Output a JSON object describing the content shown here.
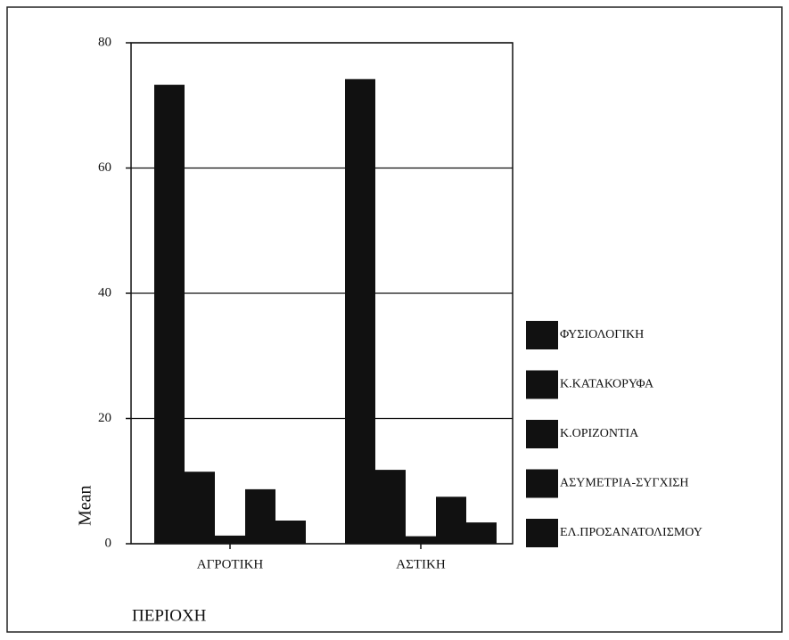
{
  "chart_data": {
    "type": "bar",
    "categories": [
      "ΑΓΡΟΤΙΚΗ",
      "ΑΣΤΙΚΗ"
    ],
    "series": [
      {
        "name": "ΦΥΣΙΟΛΟΓΙΚΗ",
        "color": "#111111",
        "values": [
          73.3,
          74.2
        ]
      },
      {
        "name": "Κ.ΚΑΤΑΚΟΡΥΦΑ",
        "color": "#111111",
        "values": [
          11.5,
          11.8
        ]
      },
      {
        "name": "Κ.ΟΡΙΖΟΝΤΙΑ",
        "color": "#111111",
        "values": [
          1.3,
          1.2
        ]
      },
      {
        "name": "ΑΣΥΜΕΤΡΙΑ-ΣΥΓΧΙΣΗ",
        "color": "#111111",
        "values": [
          8.7,
          7.5
        ]
      },
      {
        "name": "ΕΛ.ΠΡΟΣΑΝΑΤΟΛΙΣΜΟΥ",
        "color": "#111111",
        "values": [
          3.7,
          3.4
        ]
      }
    ],
    "y_label": "Mean",
    "x_label": "ΠΕΡΙΟΧΗ",
    "ylim": [
      0,
      80
    ],
    "yticks": [
      0,
      20,
      40,
      60,
      80
    ],
    "grid": true,
    "legend": "right"
  }
}
